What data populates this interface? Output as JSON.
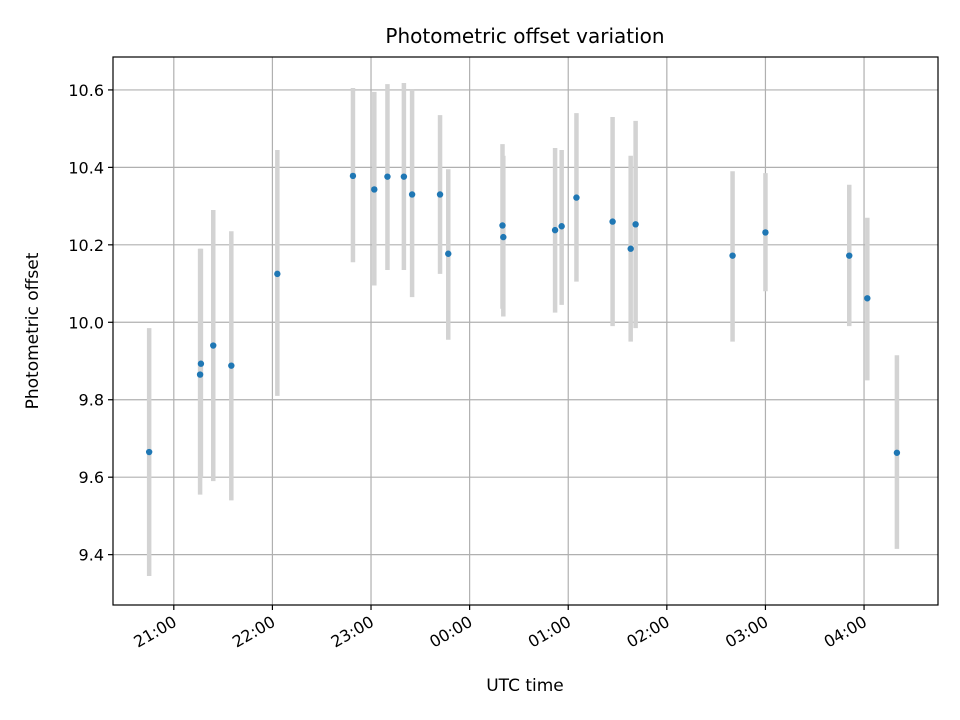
{
  "chart_data": {
    "type": "scatter",
    "title": "Photometric offset variation",
    "xlabel": "UTC time",
    "ylabel": "Photometric offset",
    "x_axis_type": "time",
    "xlim": [
      "2024-01-01T20:23:00",
      "2024-01-02T04:45:00"
    ],
    "ylim": [
      9.27,
      10.685
    ],
    "x_ticks": [
      {
        "value": "2024-01-01T21:00:00",
        "label": "21:00"
      },
      {
        "value": "2024-01-01T22:00:00",
        "label": "22:00"
      },
      {
        "value": "2024-01-01T23:00:00",
        "label": "23:00"
      },
      {
        "value": "2024-01-02T00:00:00",
        "label": "00:00"
      },
      {
        "value": "2024-01-02T01:00:00",
        "label": "01:00"
      },
      {
        "value": "2024-01-02T02:00:00",
        "label": "02:00"
      },
      {
        "value": "2024-01-02T03:00:00",
        "label": "03:00"
      },
      {
        "value": "2024-01-02T04:00:00",
        "label": "04:00"
      }
    ],
    "y_ticks": [
      {
        "value": 9.4,
        "label": "9.4"
      },
      {
        "value": 9.6,
        "label": "9.6"
      },
      {
        "value": 9.8,
        "label": "9.8"
      },
      {
        "value": 10.0,
        "label": "10.0"
      },
      {
        "value": 10.2,
        "label": "10.2"
      },
      {
        "value": 10.4,
        "label": "10.4"
      },
      {
        "value": 10.6,
        "label": "10.6"
      }
    ],
    "grid": true,
    "marker_color": "#1f77b4",
    "errorbar_color": "#d3d3d3",
    "points": [
      {
        "x": "2024-01-01T20:45:00",
        "y": 9.665,
        "ylow": 9.345,
        "yhigh": 9.985
      },
      {
        "x": "2024-01-01T21:16:00",
        "y": 9.865,
        "ylow": 9.555,
        "yhigh": 10.19
      },
      {
        "x": "2024-01-01T21:16:30",
        "y": 9.893,
        "ylow": 9.6,
        "yhigh": 10.19
      },
      {
        "x": "2024-01-01T21:24:00",
        "y": 9.94,
        "ylow": 9.59,
        "yhigh": 10.29
      },
      {
        "x": "2024-01-01T21:35:00",
        "y": 9.888,
        "ylow": 9.54,
        "yhigh": 10.235
      },
      {
        "x": "2024-01-01T22:03:00",
        "y": 10.125,
        "ylow": 9.81,
        "yhigh": 10.445
      },
      {
        "x": "2024-01-01T22:49:00",
        "y": 10.378,
        "ylow": 10.155,
        "yhigh": 10.605
      },
      {
        "x": "2024-01-01T23:02:00",
        "y": 10.343,
        "ylow": 10.095,
        "yhigh": 10.595
      },
      {
        "x": "2024-01-01T23:10:00",
        "y": 10.376,
        "ylow": 10.135,
        "yhigh": 10.615
      },
      {
        "x": "2024-01-01T23:20:00",
        "y": 10.376,
        "ylow": 10.135,
        "yhigh": 10.618
      },
      {
        "x": "2024-01-01T23:25:00",
        "y": 10.33,
        "ylow": 10.065,
        "yhigh": 10.6
      },
      {
        "x": "2024-01-01T23:42:00",
        "y": 10.33,
        "ylow": 10.125,
        "yhigh": 10.535
      },
      {
        "x": "2024-01-01T23:47:00",
        "y": 10.177,
        "ylow": 9.955,
        "yhigh": 10.395
      },
      {
        "x": "2024-01-02T00:20:00",
        "y": 10.25,
        "ylow": 10.035,
        "yhigh": 10.46
      },
      {
        "x": "2024-01-02T00:20:30",
        "y": 10.22,
        "ylow": 10.015,
        "yhigh": 10.43
      },
      {
        "x": "2024-01-02T00:52:00",
        "y": 10.238,
        "ylow": 10.025,
        "yhigh": 10.45
      },
      {
        "x": "2024-01-02T00:56:00",
        "y": 10.248,
        "ylow": 10.045,
        "yhigh": 10.445
      },
      {
        "x": "2024-01-02T01:05:00",
        "y": 10.322,
        "ylow": 10.105,
        "yhigh": 10.54
      },
      {
        "x": "2024-01-02T01:27:00",
        "y": 10.26,
        "ylow": 9.99,
        "yhigh": 10.53
      },
      {
        "x": "2024-01-02T01:38:00",
        "y": 10.19,
        "ylow": 9.95,
        "yhigh": 10.43
      },
      {
        "x": "2024-01-02T01:41:00",
        "y": 10.253,
        "ylow": 9.985,
        "yhigh": 10.52
      },
      {
        "x": "2024-01-02T02:40:00",
        "y": 10.172,
        "ylow": 9.95,
        "yhigh": 10.39
      },
      {
        "x": "2024-01-02T03:00:00",
        "y": 10.232,
        "ylow": 10.08,
        "yhigh": 10.385
      },
      {
        "x": "2024-01-02T03:51:00",
        "y": 10.172,
        "ylow": 9.99,
        "yhigh": 10.355
      },
      {
        "x": "2024-01-02T04:02:00",
        "y": 10.062,
        "ylow": 9.85,
        "yhigh": 10.27
      },
      {
        "x": "2024-01-02T04:20:00",
        "y": 9.663,
        "ylow": 9.415,
        "yhigh": 9.915
      }
    ]
  }
}
